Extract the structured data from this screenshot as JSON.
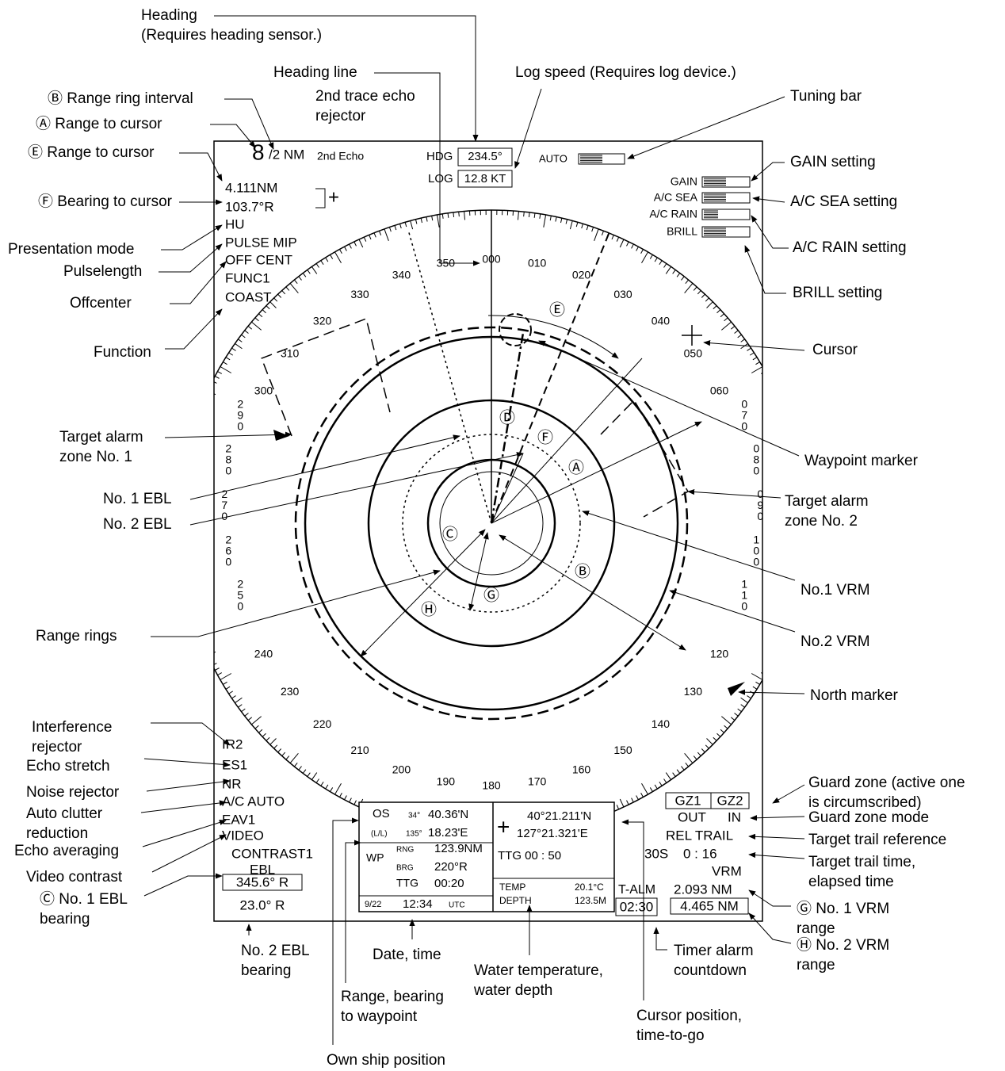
{
  "screen": {
    "range": "8",
    "range_unit": "/2 NM",
    "second_echo": "2nd Echo",
    "hdg_label": "HDG",
    "hdg": "234.5°",
    "log_label": "LOG",
    "log": "12.8 KT",
    "auto": "AUTO",
    "cursor_info": [
      "4.111NM",
      "103.7°R"
    ],
    "cursor_symbol": "+",
    "modes": [
      "HU",
      "PULSE MIP",
      "OFF CENT",
      "FUNC1",
      "COAST"
    ],
    "settings": [
      "GAIN",
      "A/C SEA",
      "A/C RAIN",
      "BRILL"
    ],
    "bearing_scale": [
      "000",
      "010",
      "020",
      "030",
      "040",
      "050",
      "060",
      "070",
      "080",
      "090",
      "100",
      "110",
      "120",
      "130",
      "140",
      "150",
      "160",
      "170",
      "180",
      "190",
      "200",
      "210",
      "220",
      "230",
      "240",
      "250",
      "260",
      "270",
      "280",
      "290",
      "300",
      "310",
      "320",
      "330",
      "340",
      "350"
    ],
    "markers": [
      "Ⓔ",
      "Ⓓ",
      "Ⓕ",
      "Ⓐ",
      "Ⓒ",
      "Ⓑ",
      "Ⓖ",
      "Ⓗ"
    ],
    "bottom_left": [
      "IR2",
      "ES1",
      "NR",
      "A/C AUTO",
      "EAV1",
      "VIDEO",
      "CONTRAST1",
      "EBL"
    ],
    "ebl1": "345.6° R",
    "ebl2": "23.0° R",
    "own_ship": {
      "os": "OS",
      "lat_deg": "34°",
      "lat": "40.36'N",
      "ll": "(L/L)",
      "lon_deg": "135°",
      "lon": "18.23'E"
    },
    "waypoint": {
      "wp": "WP",
      "rng_label": "RNG",
      "rng": "123.9NM",
      "brg_label": "BRG",
      "brg": "220°R",
      "ttg_label": "TTG",
      "ttg": "00:20"
    },
    "datetime": {
      "date": "9/22",
      "time": "12:34",
      "zone": "UTC"
    },
    "cursor_pos": {
      "symbol": "+",
      "lat": "40°21.211'N",
      "lon": "127°21.321'E",
      "ttg": "TTG  00 : 50"
    },
    "water": {
      "temp_label": "TEMP",
      "temp": "20.1°C",
      "depth_label": "DEPTH",
      "depth": "123.5M"
    },
    "right_info": {
      "gz1": "GZ1",
      "gz2": "GZ2",
      "out": "OUT",
      "in": "IN",
      "trail": "REL TRAIL",
      "trail_time": "30S",
      "elapsed": "0  : 16",
      "vrm": "VRM",
      "talm": "T-ALM",
      "vrm1": "2.093 NM",
      "timer": "02:30",
      "vrm2": "4.465 NM"
    }
  },
  "callouts": [
    {
      "lines": [
        "Heading",
        "(Requires heading sensor.)"
      ]
    },
    {
      "lines": [
        "Heading line"
      ]
    },
    {
      "lines": [
        "Log speed (Requires log device.)"
      ]
    },
    {
      "lines": [
        "Tuning bar"
      ]
    },
    {
      "lines": [
        "2nd trace echo",
        "rejector"
      ]
    },
    {
      "lines": [
        "Ⓑ Range ring interval"
      ]
    },
    {
      "lines": [
        "Ⓐ Range to cursor"
      ]
    },
    {
      "lines": [
        "Ⓔ Range to cursor"
      ]
    },
    {
      "lines": [
        "Ⓕ Bearing to cursor"
      ]
    },
    {
      "lines": [
        "Presentation mode"
      ]
    },
    {
      "lines": [
        "Pulselength"
      ]
    },
    {
      "lines": [
        "Offcenter"
      ]
    },
    {
      "lines": [
        "Function"
      ]
    },
    {
      "lines": [
        "GAIN setting"
      ]
    },
    {
      "lines": [
        "A/C SEA setting"
      ]
    },
    {
      "lines": [
        "A/C RAIN setting"
      ]
    },
    {
      "lines": [
        "BRILL setting"
      ]
    },
    {
      "lines": [
        "Cursor"
      ]
    },
    {
      "lines": [
        "Target alarm",
        "zone No. 1"
      ]
    },
    {
      "lines": [
        "Waypoint marker"
      ]
    },
    {
      "lines": [
        "No. 1 EBL"
      ]
    },
    {
      "lines": [
        "No. 2 EBL"
      ]
    },
    {
      "lines": [
        "Target alarm",
        "zone No. 2"
      ]
    },
    {
      "lines": [
        "No.1 VRM"
      ]
    },
    {
      "lines": [
        "Range rings"
      ]
    },
    {
      "lines": [
        "No.2 VRM"
      ]
    },
    {
      "lines": [
        "North marker"
      ]
    },
    {
      "lines": [
        "Interference",
        "rejector"
      ]
    },
    {
      "lines": [
        "Echo stretch"
      ]
    },
    {
      "lines": [
        "Noise rejector"
      ]
    },
    {
      "lines": [
        "Auto clutter",
        "reduction"
      ]
    },
    {
      "lines": [
        "Echo averaging"
      ]
    },
    {
      "lines": [
        "Video contrast"
      ]
    },
    {
      "lines": [
        "Ⓒ No. 1 EBL",
        "bearing"
      ]
    },
    {
      "lines": [
        "No. 2 EBL",
        "bearing"
      ]
    },
    {
      "lines": [
        "Date, time"
      ]
    },
    {
      "lines": [
        "Water temperature,",
        "water depth"
      ]
    },
    {
      "lines": [
        "Range, bearing",
        "to waypoint"
      ]
    },
    {
      "lines": [
        "Cursor position,",
        "time-to-go"
      ]
    },
    {
      "lines": [
        "Own ship position"
      ]
    },
    {
      "lines": [
        "Guard zone (active one",
        "is circumscribed)"
      ]
    },
    {
      "lines": [
        "Guard zone mode"
      ]
    },
    {
      "lines": [
        "Target trail reference"
      ]
    },
    {
      "lines": [
        "Target trail time,",
        "elapsed time"
      ]
    },
    {
      "lines": [
        "Ⓖ No. 1 VRM",
        "range"
      ]
    },
    {
      "lines": [
        "Ⓗ No. 2 VRM",
        "range"
      ]
    },
    {
      "lines": [
        "Timer alarm",
        "countdown"
      ]
    }
  ]
}
